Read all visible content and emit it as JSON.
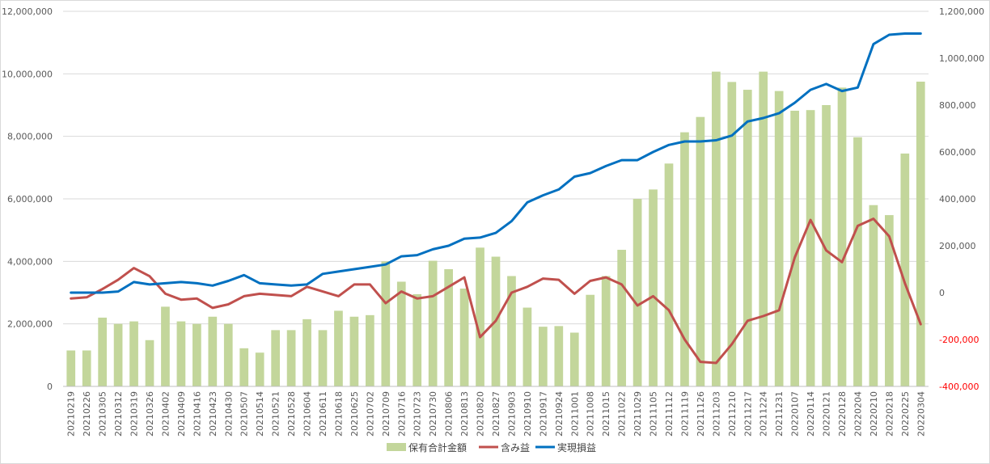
{
  "chart_data": {
    "type": "bar+line",
    "title": "",
    "categories": [
      "20210219",
      "20210226",
      "20210305",
      "20210312",
      "20210319",
      "20210326",
      "20210402",
      "20210409",
      "20210416",
      "20210423",
      "20210430",
      "20210507",
      "20210514",
      "20210521",
      "20210528",
      "20210604",
      "20210611",
      "20210618",
      "20210625",
      "20210702",
      "20210709",
      "20210716",
      "20210723",
      "20210730",
      "20210806",
      "20210813",
      "20210820",
      "20210827",
      "20210903",
      "20210910",
      "20210917",
      "20210924",
      "20211001",
      "20211008",
      "20211015",
      "20211022",
      "20211029",
      "20211105",
      "20211112",
      "20211119",
      "20211126",
      "20211203",
      "20211210",
      "20211217",
      "20211224",
      "20211231",
      "20220107",
      "20220114",
      "20220121",
      "20220128",
      "20220204",
      "20220210",
      "20220218",
      "20220225",
      "20220304"
    ],
    "left_axis": {
      "ylim": [
        0,
        12000000
      ],
      "ticks": [
        "0",
        "2,000,000",
        "4,000,000",
        "6,000,000",
        "8,000,000",
        "10,000,000",
        "12,000,000"
      ]
    },
    "right_axis": {
      "ylim": [
        -400000,
        1200000
      ],
      "ticks": [
        "-400,000",
        "-200,000",
        "0",
        "200,000",
        "400,000",
        "600,000",
        "800,000",
        "1,000,000",
        "1,200,000"
      ]
    },
    "grid": true,
    "legend_position": "bottom",
    "series": [
      {
        "name": "保有合計金額",
        "type": "bar",
        "axis": "left",
        "color": "#c3d69b",
        "values": [
          1150000,
          1150000,
          2200000,
          2000000,
          2080000,
          1480000,
          2550000,
          2080000,
          2000000,
          2230000,
          2000000,
          1220000,
          1080000,
          1800000,
          1800000,
          2150000,
          1800000,
          2420000,
          2230000,
          2280000,
          4000000,
          3350000,
          2950000,
          4020000,
          3750000,
          3130000,
          4440000,
          4150000,
          3530000,
          2520000,
          1910000,
          1930000,
          1720000,
          2930000,
          3530000,
          4370000,
          6000000,
          6300000,
          7130000,
          8130000,
          8620000,
          10070000,
          9740000,
          9490000,
          10070000,
          9450000,
          8820000,
          8840000,
          9000000,
          9560000,
          7970000,
          5800000,
          5480000,
          7450000,
          9750000
        ]
      },
      {
        "name": "含み益",
        "type": "line",
        "axis": "right",
        "color": "#c0504d",
        "values": [
          -25000,
          -20000,
          15000,
          55000,
          105000,
          70000,
          -5000,
          -30000,
          -25000,
          -65000,
          -50000,
          -15000,
          -5000,
          -10000,
          -15000,
          25000,
          5000,
          -15000,
          35000,
          35000,
          -45000,
          5000,
          -25000,
          -15000,
          25000,
          65000,
          -190000,
          -120000,
          0,
          25000,
          60000,
          55000,
          -5000,
          50000,
          65000,
          35000,
          -55000,
          -15000,
          -75000,
          -200000,
          -295000,
          -300000,
          -220000,
          -120000,
          -100000,
          -75000,
          150000,
          310000,
          180000,
          130000,
          285000,
          315000,
          240000,
          40000,
          -135000
        ]
      },
      {
        "name": "実現損益",
        "type": "line",
        "axis": "right",
        "color": "#0070c0",
        "values": [
          0,
          0,
          0,
          5000,
          45000,
          35000,
          40000,
          45000,
          40000,
          30000,
          50000,
          75000,
          40000,
          35000,
          30000,
          35000,
          80000,
          90000,
          100000,
          110000,
          120000,
          155000,
          160000,
          185000,
          200000,
          230000,
          235000,
          255000,
          305000,
          385000,
          415000,
          440000,
          495000,
          510000,
          540000,
          565000,
          565000,
          600000,
          630000,
          645000,
          645000,
          650000,
          670000,
          730000,
          745000,
          765000,
          810000,
          865000,
          890000,
          860000,
          875000,
          1060000,
          1100000,
          1105000,
          1105000
        ]
      }
    ]
  }
}
